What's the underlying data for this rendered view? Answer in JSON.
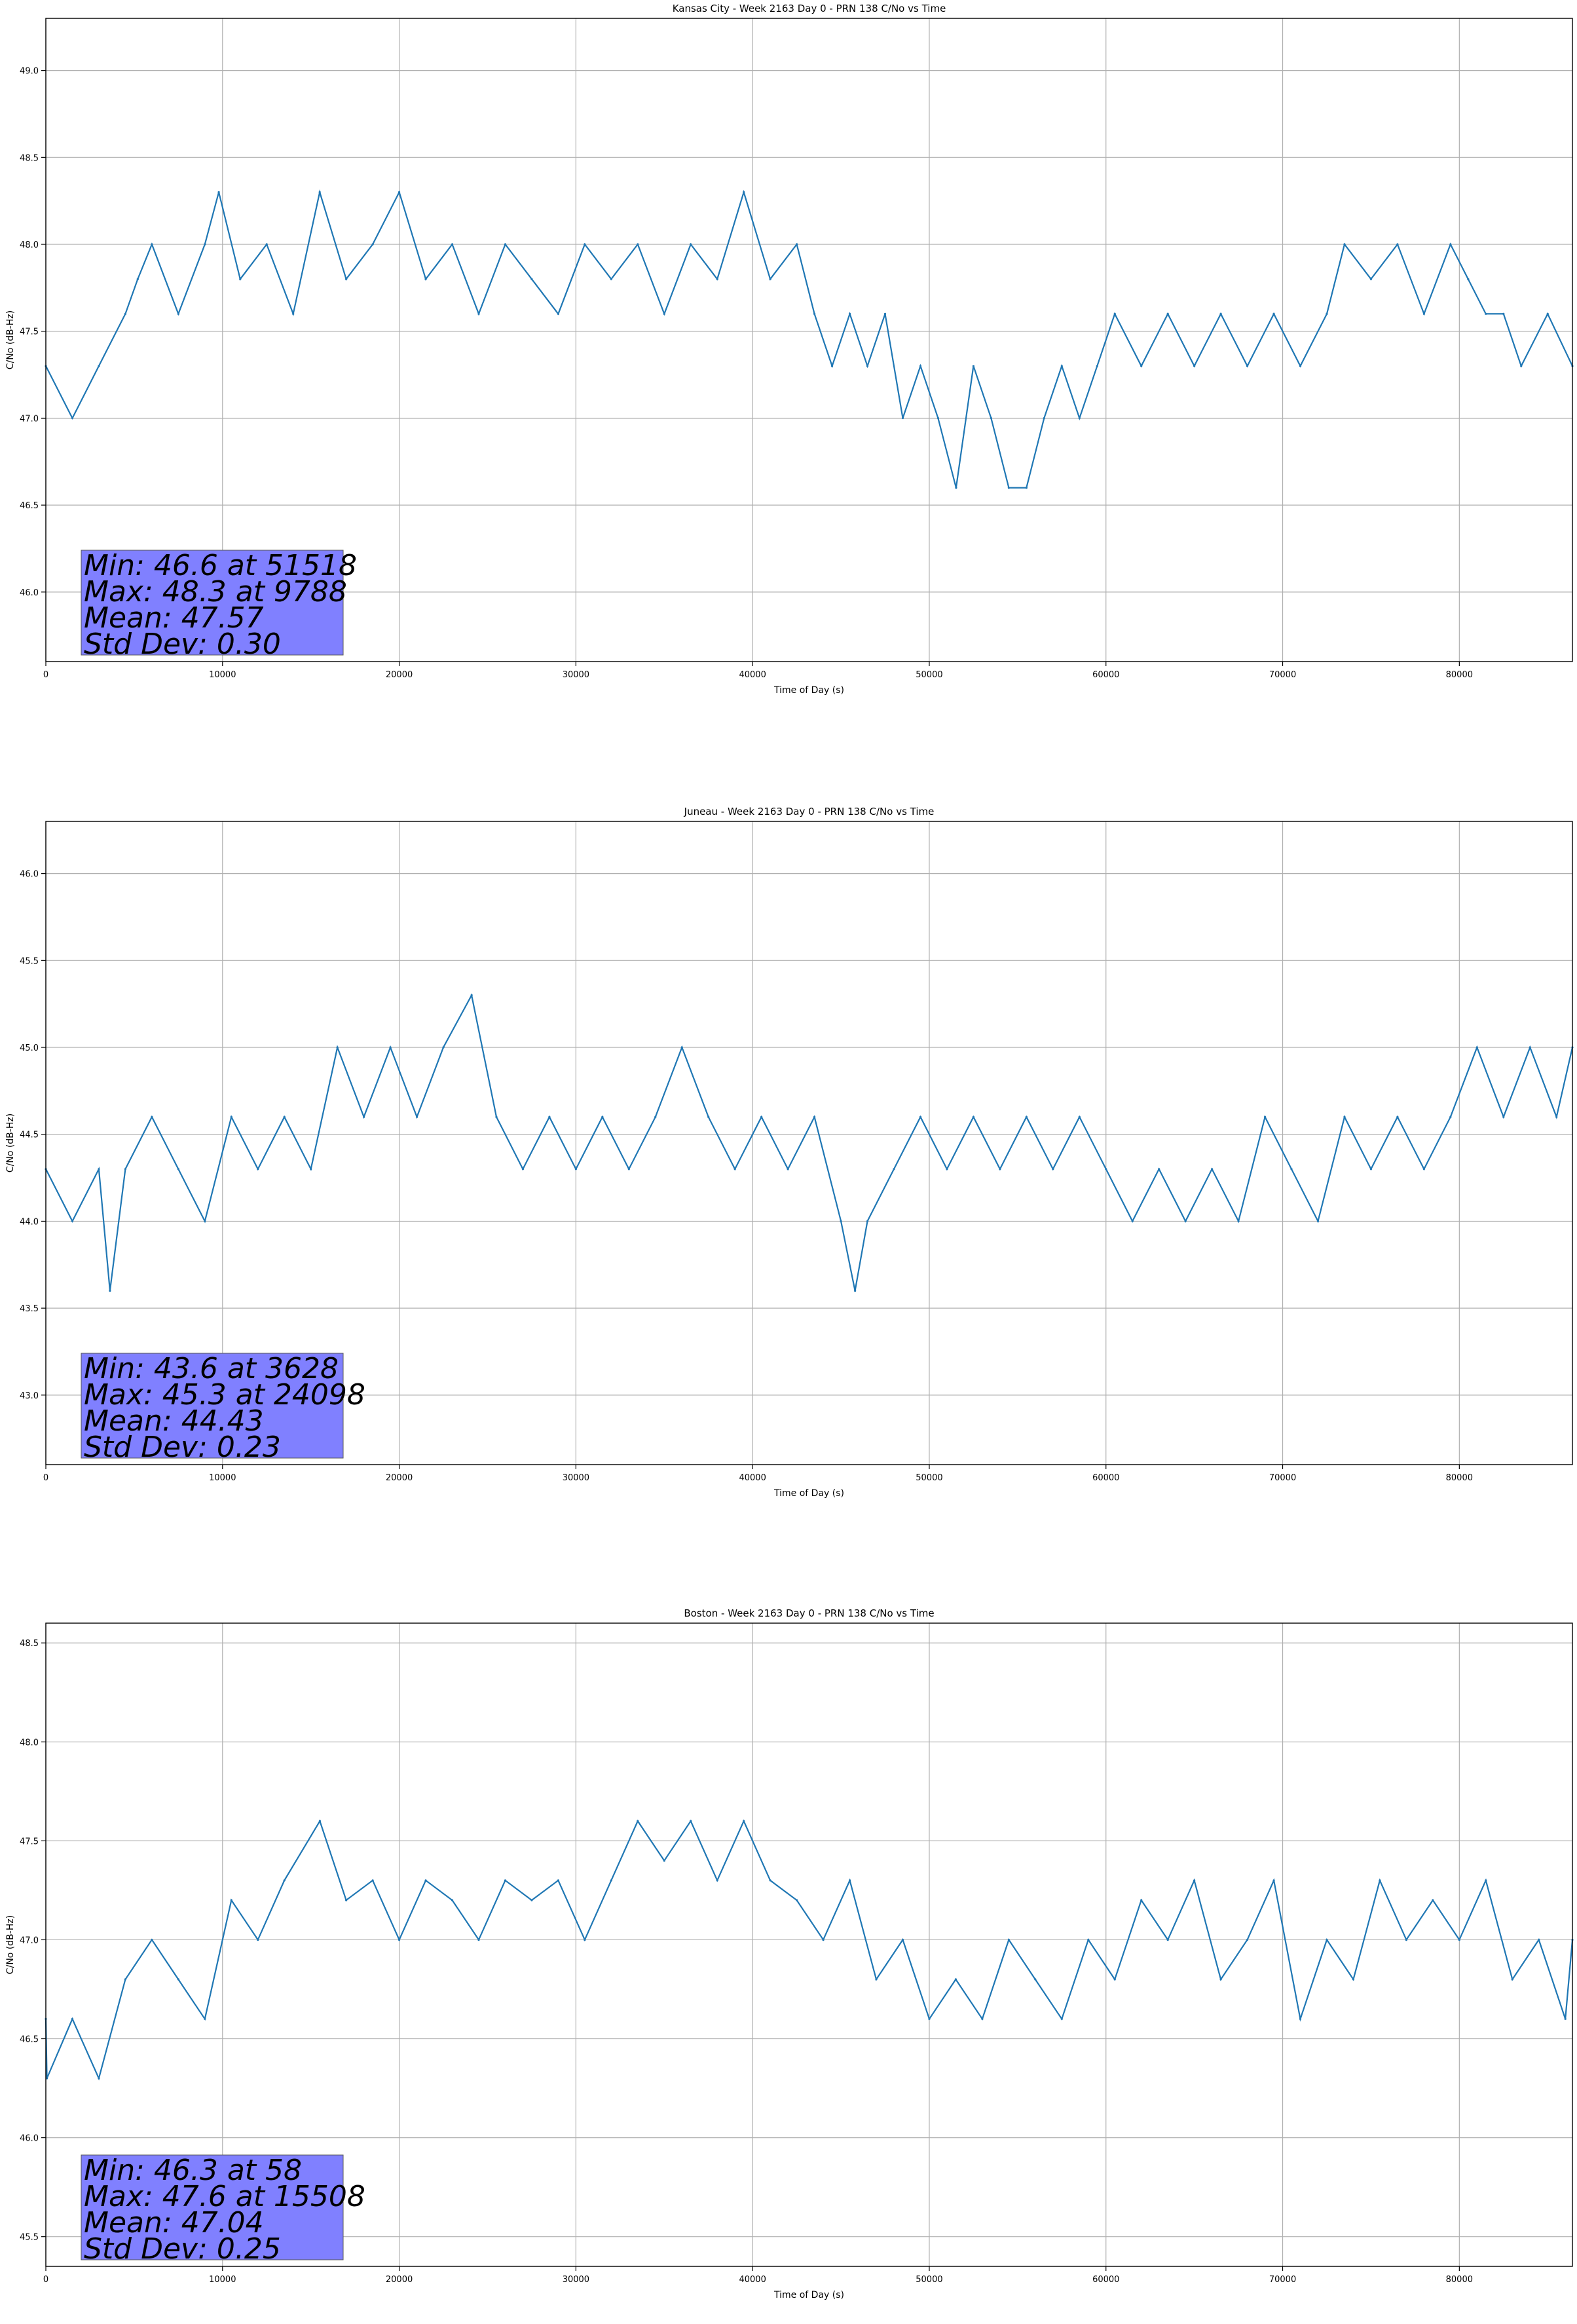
{
  "figure": {
    "series_color": "#1f77b4",
    "stats_box_color": "#8080ff"
  },
  "chart_data": [
    {
      "type": "line",
      "title": "Kansas City - Week 2163 Day 0 - PRN 138 C/No vs Time",
      "xlabel": "Time of Day (s)",
      "ylabel": "C/No (dB-Hz)",
      "xlim": [
        0,
        86400
      ],
      "ylim": [
        45.6,
        49.3
      ],
      "xticks": [
        0,
        10000,
        20000,
        30000,
        40000,
        50000,
        60000,
        70000,
        80000
      ],
      "yticks": [
        46.0,
        46.5,
        47.0,
        47.5,
        48.0,
        48.5,
        49.0
      ],
      "grid": true,
      "stats": [
        "Min: 46.6 at 51518",
        "Max: 48.3 at 9788",
        "Mean: 47.57",
        "Std Dev: 0.30"
      ],
      "series": [
        {
          "x": [
            0,
            1500,
            3000,
            4500,
            5200,
            6000,
            7500,
            9000,
            9788,
            11000,
            12500,
            14000,
            15500,
            17000,
            18500,
            20000,
            21500,
            23000,
            24500,
            26000,
            27500,
            29000,
            30500,
            32000,
            33500,
            35000,
            36500,
            38000,
            39500,
            41000,
            42500,
            43500,
            44500,
            45500,
            46500,
            47500,
            48500,
            49500,
            50500,
            51518,
            52500,
            53500,
            54500,
            55500,
            56500,
            57500,
            58500,
            59500,
            60500,
            62000,
            63500,
            65000,
            66500,
            68000,
            69500,
            71000,
            72500,
            73500,
            75000,
            76500,
            78000,
            79500,
            80500,
            81500,
            82500,
            83500,
            85000,
            86400
          ],
          "y": [
            47.3,
            47.0,
            47.3,
            47.6,
            47.8,
            48.0,
            47.6,
            48.0,
            48.3,
            47.8,
            48.0,
            47.6,
            48.3,
            47.8,
            48.0,
            48.3,
            47.8,
            48.0,
            47.6,
            48.0,
            47.8,
            47.6,
            48.0,
            47.8,
            48.0,
            47.6,
            48.0,
            47.8,
            48.3,
            47.8,
            48.0,
            47.6,
            47.3,
            47.6,
            47.3,
            47.6,
            47.0,
            47.3,
            47.0,
            46.6,
            47.3,
            47.0,
            46.6,
            46.6,
            47.0,
            47.3,
            47.0,
            47.3,
            47.6,
            47.3,
            47.6,
            47.3,
            47.6,
            47.3,
            47.6,
            47.3,
            47.6,
            48.0,
            47.8,
            48.0,
            47.6,
            48.0,
            47.8,
            47.6,
            47.6,
            47.3,
            47.6,
            47.3
          ]
        }
      ]
    },
    {
      "type": "line",
      "title": "Juneau - Week 2163 Day 0 - PRN 138 C/No vs Time",
      "xlabel": "Time of Day (s)",
      "ylabel": "C/No (dB-Hz)",
      "xlim": [
        0,
        86400
      ],
      "ylim": [
        42.6,
        46.3
      ],
      "xticks": [
        0,
        10000,
        20000,
        30000,
        40000,
        50000,
        60000,
        70000,
        80000
      ],
      "yticks": [
        43.0,
        43.5,
        44.0,
        44.5,
        45.0,
        45.5,
        46.0
      ],
      "grid": true,
      "stats": [
        "Min: 43.6 at 3628",
        "Max: 45.3 at 24098",
        "Mean: 44.43",
        "Std Dev: 0.23"
      ],
      "series": [
        {
          "x": [
            0,
            1500,
            3000,
            3628,
            4500,
            6000,
            7500,
            9000,
            10500,
            12000,
            13500,
            15000,
            16500,
            18000,
            19500,
            21000,
            22500,
            24098,
            25500,
            27000,
            28500,
            30000,
            31500,
            33000,
            34500,
            36000,
            37500,
            39000,
            40500,
            42000,
            43500,
            45000,
            45800,
            46500,
            48000,
            49500,
            51000,
            52500,
            54000,
            55500,
            57000,
            58500,
            60000,
            61500,
            63000,
            64500,
            66000,
            67500,
            69000,
            70500,
            72000,
            73500,
            75000,
            76500,
            78000,
            79500,
            81000,
            82500,
            84000,
            85500,
            86400
          ],
          "y": [
            44.3,
            44.0,
            44.3,
            43.6,
            44.3,
            44.6,
            44.3,
            44.0,
            44.6,
            44.3,
            44.6,
            44.3,
            45.0,
            44.6,
            45.0,
            44.6,
            45.0,
            45.3,
            44.6,
            44.3,
            44.6,
            44.3,
            44.6,
            44.3,
            44.6,
            45.0,
            44.6,
            44.3,
            44.6,
            44.3,
            44.6,
            44.0,
            43.6,
            44.0,
            44.3,
            44.6,
            44.3,
            44.6,
            44.3,
            44.6,
            44.3,
            44.6,
            44.3,
            44.0,
            44.3,
            44.0,
            44.3,
            44.0,
            44.6,
            44.3,
            44.0,
            44.6,
            44.3,
            44.6,
            44.3,
            44.6,
            45.0,
            44.6,
            45.0,
            44.6,
            45.0
          ]
        }
      ]
    },
    {
      "type": "line",
      "title": "Boston - Week 2163 Day 0 - PRN 138 C/No vs Time",
      "xlabel": "Time of Day (s)",
      "ylabel": "C/No (dB-Hz)",
      "xlim": [
        0,
        86400
      ],
      "ylim": [
        45.35,
        48.6
      ],
      "xticks": [
        0,
        10000,
        20000,
        30000,
        40000,
        50000,
        60000,
        70000,
        80000
      ],
      "yticks": [
        45.5,
        46.0,
        46.5,
        47.0,
        47.5,
        48.0,
        48.5
      ],
      "grid": true,
      "stats": [
        "Min: 46.3 at 58",
        "Max: 47.6 at 15508",
        "Mean: 47.04",
        "Std Dev: 0.25"
      ],
      "series": [
        {
          "x": [
            0,
            58,
            1500,
            3000,
            4500,
            6000,
            7500,
            9000,
            10500,
            12000,
            13500,
            15508,
            17000,
            18500,
            20000,
            21500,
            23000,
            24500,
            26000,
            27500,
            29000,
            30500,
            32000,
            33500,
            35000,
            36500,
            38000,
            39500,
            41000,
            42500,
            44000,
            45500,
            47000,
            48500,
            50000,
            51500,
            53000,
            54500,
            56000,
            57500,
            59000,
            60500,
            62000,
            63500,
            65000,
            66500,
            68000,
            69500,
            71000,
            72500,
            74000,
            75500,
            77000,
            78500,
            80000,
            81500,
            83000,
            84500,
            86000,
            86400
          ],
          "y": [
            46.6,
            46.3,
            46.6,
            46.3,
            46.8,
            47.0,
            46.8,
            46.6,
            47.2,
            47.0,
            47.3,
            47.6,
            47.2,
            47.3,
            47.0,
            47.3,
            47.2,
            47.0,
            47.3,
            47.2,
            47.3,
            47.0,
            47.3,
            47.6,
            47.4,
            47.6,
            47.3,
            47.6,
            47.3,
            47.2,
            47.0,
            47.3,
            46.8,
            47.0,
            46.6,
            46.8,
            46.6,
            47.0,
            46.8,
            46.6,
            47.0,
            46.8,
            47.2,
            47.0,
            47.3,
            46.8,
            47.0,
            47.3,
            46.6,
            47.0,
            46.8,
            47.3,
            47.0,
            47.2,
            47.0,
            47.3,
            46.8,
            47.0,
            46.6,
            47.0
          ]
        }
      ]
    }
  ]
}
